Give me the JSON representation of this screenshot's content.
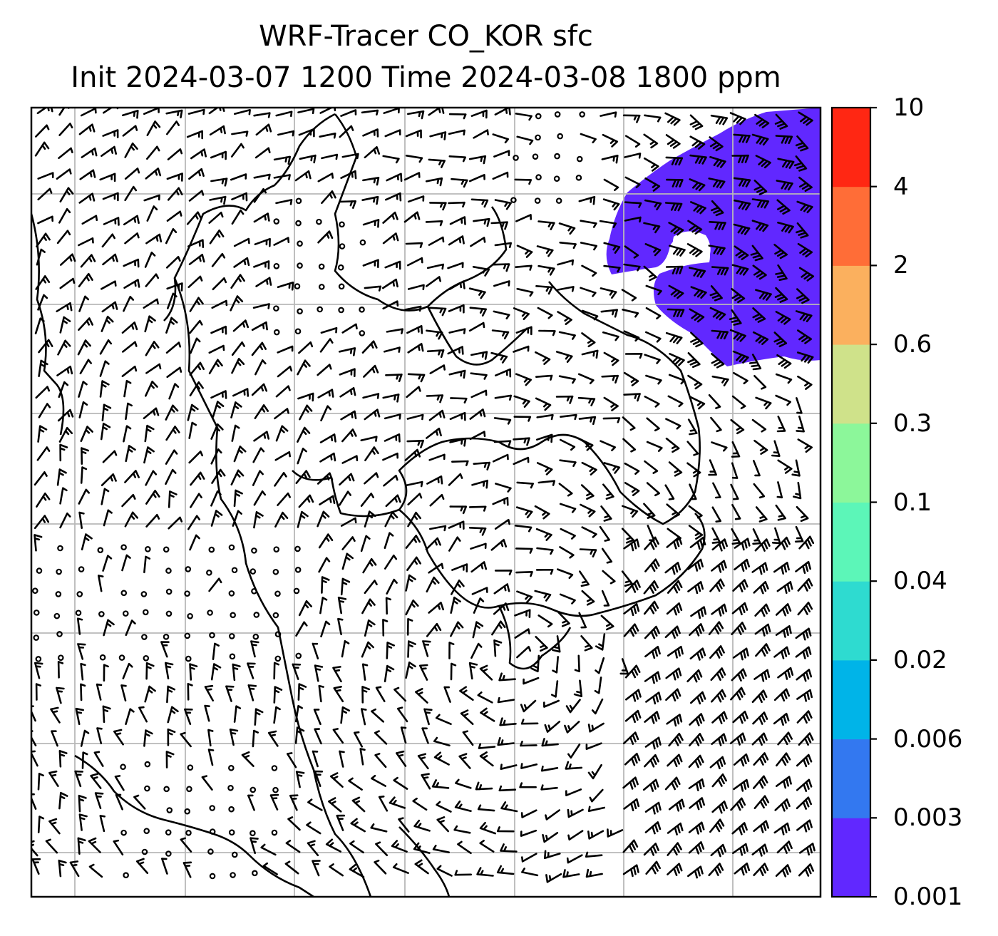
{
  "title": {
    "line1": "WRF-Tracer CO_KOR sfc",
    "line2": "Init 2024-03-07 1200 Time 2024-03-08 1800 ppm"
  },
  "colorbar": {
    "levels": [
      "0.001",
      "0.003",
      "0.006",
      "0.02",
      "0.04",
      "0.1",
      "0.3",
      "0.6",
      "2",
      "4",
      "10"
    ],
    "colors": [
      "#6128ff",
      "#3378f0",
      "#00b4e8",
      "#2edbd0",
      "#5cf6b8",
      "#8cf79a",
      "#cfe28a",
      "#fbb05e",
      "#ff6d37",
      "#ff2713"
    ]
  },
  "map": {
    "plume_color": "#6128ff",
    "coastline_color": "#000000",
    "gridline_color": "#b8b8b8",
    "wind_barbs": "black"
  }
}
